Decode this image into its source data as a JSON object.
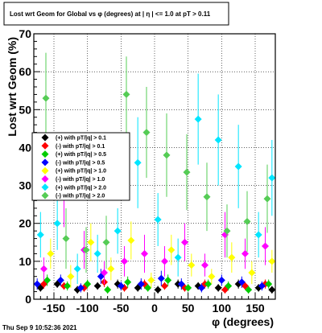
{
  "chart_data": {
    "type": "scatter",
    "title": "Lost wrt Geom for Global vs φ (degrees) at |  η | <= 1.0 at pT > 0.11",
    "xlabel": "φ (degrees)",
    "ylabel": "Lost wrt Geom (%)",
    "xlim": [
      -180,
      180
    ],
    "ylim": [
      0,
      70
    ],
    "x_ticks": [
      -150,
      -100,
      -50,
      0,
      50,
      100,
      150
    ],
    "y_ticks": [
      0,
      10,
      20,
      30,
      40,
      50,
      60,
      70
    ],
    "grid": true,
    "legend_position": "left",
    "error_bars": true,
    "series": [
      {
        "name": "(+) with pT/|q| > 0.1",
        "color": "#000000",
        "x": [
          -170,
          -145,
          -115,
          -85,
          -55,
          -25,
          5,
          35,
          65,
          95,
          125,
          155,
          175
        ],
        "y": [
          3,
          4,
          2.5,
          3.5,
          4,
          3,
          2.5,
          4,
          3.5,
          3,
          4,
          3,
          2.5
        ],
        "err": [
          1,
          1,
          1,
          1,
          1.2,
          1,
          1,
          1.2,
          1,
          1,
          1.2,
          1,
          1
        ]
      },
      {
        "name": "(-) with pT/|q| > 0.1",
        "color": "#ff0000",
        "x": [
          -165,
          -135,
          -105,
          -75,
          -45,
          -15,
          15,
          45,
          75,
          105,
          135,
          165
        ],
        "y": [
          4,
          3.5,
          3,
          4.5,
          3,
          4,
          3.5,
          3,
          4,
          2.5,
          3.5,
          4
        ],
        "err": [
          1.2,
          1,
          1,
          1.3,
          1,
          1.2,
          1,
          1,
          1.2,
          1,
          1,
          1.2
        ]
      },
      {
        "name": "(+) with pT/|q| > 0.5",
        "color": "#00cc00",
        "x": [
          -160,
          -130,
          -100,
          -70,
          -40,
          -10,
          20,
          50,
          80,
          110,
          140,
          170
        ],
        "y": [
          5,
          3.5,
          4,
          2.5,
          4.5,
          3,
          5,
          3,
          4,
          3.5,
          2.5,
          4
        ],
        "err": [
          1.5,
          1.2,
          1.2,
          1,
          1.5,
          1,
          1.5,
          1,
          1.2,
          1.2,
          1,
          1.2
        ]
      },
      {
        "name": "(-) with pT/|q| > 0.5",
        "color": "#0000ff",
        "x": [
          -175,
          -140,
          -110,
          -80,
          -50,
          -20,
          10,
          40,
          70,
          100,
          130,
          160
        ],
        "y": [
          4,
          5,
          3,
          6,
          3.5,
          4,
          5.5,
          4,
          3,
          5,
          4.5,
          3.5
        ],
        "err": [
          1.5,
          1.5,
          1.2,
          2,
          1.2,
          1.5,
          2,
          1.5,
          1.2,
          1.5,
          1.5,
          1.2
        ]
      },
      {
        "name": "(+) with pT/|q| > 1.0",
        "color": "#ffff00",
        "x": [
          -155,
          -125,
          -95,
          -65,
          -35,
          -5,
          25,
          55,
          85,
          115,
          145,
          175
        ],
        "y": [
          12,
          6,
          15,
          8,
          15.5,
          5,
          13,
          9,
          6,
          11,
          7,
          10
        ],
        "err": [
          4,
          3,
          5,
          3,
          5,
          2,
          4,
          3,
          2,
          4,
          3,
          3
        ]
      },
      {
        "name": "(-) with pT/|q| > 1.0",
        "color": "#ff00ff",
        "x": [
          -165,
          -135,
          -105,
          -75,
          -45,
          -15,
          15,
          45,
          75,
          105,
          135,
          165
        ],
        "y": [
          8,
          27,
          13,
          7,
          10,
          12,
          10,
          15,
          9,
          17,
          12,
          14
        ],
        "err": [
          3,
          8,
          5,
          3,
          4,
          5,
          4,
          5,
          3,
          6,
          4,
          5
        ]
      },
      {
        "name": "(+) with pT/|q| > 2.0",
        "color": "#00e5ff",
        "x": [
          -170,
          -145,
          -115,
          -85,
          -55,
          -25,
          5,
          35,
          65,
          95,
          125,
          155,
          175
        ],
        "y": [
          17,
          20,
          8,
          12,
          18,
          36,
          21,
          11,
          47.5,
          42,
          35,
          17,
          32
        ],
        "err": [
          6,
          7,
          4,
          5,
          6,
          12,
          7,
          5,
          12,
          12,
          11,
          6,
          10
        ]
      },
      {
        "name": "(-) with pT/|q| > 2.0",
        "color": "#55cc55",
        "x": [
          -162,
          -132,
          -102,
          -72,
          -42,
          -12,
          18,
          48,
          78,
          108,
          138,
          168
        ],
        "y": [
          53,
          16,
          13,
          15,
          54,
          44,
          38,
          33.5,
          27,
          18,
          20.5,
          26.5
        ],
        "err": [
          12,
          8,
          6,
          7,
          10,
          12,
          11,
          10,
          9,
          7,
          8,
          9
        ]
      }
    ]
  },
  "footer": {
    "timestamp": "Thu Sep  9 10:52:36 2021"
  }
}
